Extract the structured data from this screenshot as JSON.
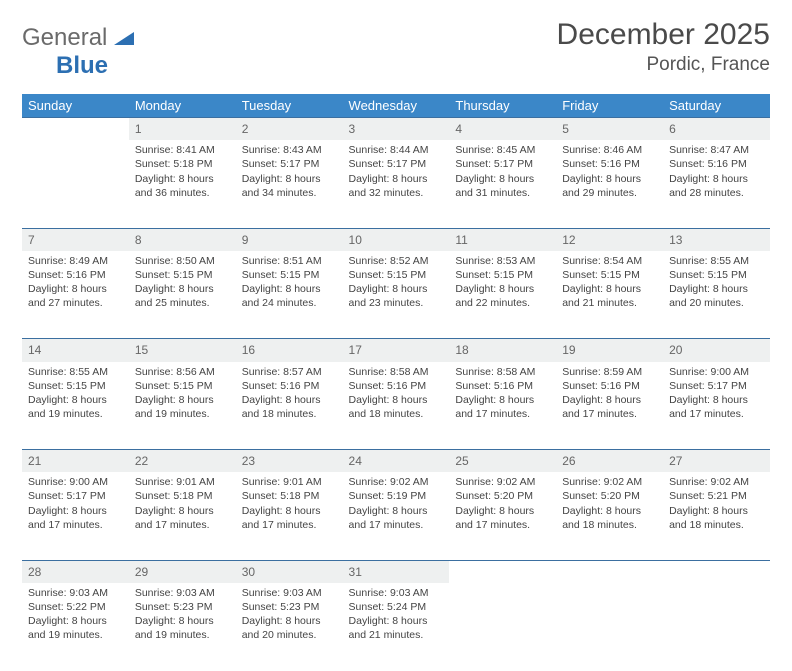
{
  "logo": {
    "word1": "General",
    "word2": "Blue"
  },
  "title": "December 2025",
  "location": "Pordic, France",
  "colors": {
    "header_bar": "#3b87c8",
    "daynum_bg": "#eef0f0",
    "row_border": "#3b6fa0",
    "logo_gray": "#6a6a6a",
    "logo_blue": "#2c6fb2",
    "title_color": "#4a4a4a",
    "body_text": "#444444"
  },
  "weekdays": [
    "Sunday",
    "Monday",
    "Tuesday",
    "Wednesday",
    "Thursday",
    "Friday",
    "Saturday"
  ],
  "layout": {
    "columns": 7,
    "weeks": 5,
    "first_weekday_index": 1,
    "days_in_month": 31
  },
  "days": {
    "1": {
      "sunrise": "8:41 AM",
      "sunset": "5:18 PM",
      "daylight": "8 hours and 36 minutes."
    },
    "2": {
      "sunrise": "8:43 AM",
      "sunset": "5:17 PM",
      "daylight": "8 hours and 34 minutes."
    },
    "3": {
      "sunrise": "8:44 AM",
      "sunset": "5:17 PM",
      "daylight": "8 hours and 32 minutes."
    },
    "4": {
      "sunrise": "8:45 AM",
      "sunset": "5:17 PM",
      "daylight": "8 hours and 31 minutes."
    },
    "5": {
      "sunrise": "8:46 AM",
      "sunset": "5:16 PM",
      "daylight": "8 hours and 29 minutes."
    },
    "6": {
      "sunrise": "8:47 AM",
      "sunset": "5:16 PM",
      "daylight": "8 hours and 28 minutes."
    },
    "7": {
      "sunrise": "8:49 AM",
      "sunset": "5:16 PM",
      "daylight": "8 hours and 27 minutes."
    },
    "8": {
      "sunrise": "8:50 AM",
      "sunset": "5:15 PM",
      "daylight": "8 hours and 25 minutes."
    },
    "9": {
      "sunrise": "8:51 AM",
      "sunset": "5:15 PM",
      "daylight": "8 hours and 24 minutes."
    },
    "10": {
      "sunrise": "8:52 AM",
      "sunset": "5:15 PM",
      "daylight": "8 hours and 23 minutes."
    },
    "11": {
      "sunrise": "8:53 AM",
      "sunset": "5:15 PM",
      "daylight": "8 hours and 22 minutes."
    },
    "12": {
      "sunrise": "8:54 AM",
      "sunset": "5:15 PM",
      "daylight": "8 hours and 21 minutes."
    },
    "13": {
      "sunrise": "8:55 AM",
      "sunset": "5:15 PM",
      "daylight": "8 hours and 20 minutes."
    },
    "14": {
      "sunrise": "8:55 AM",
      "sunset": "5:15 PM",
      "daylight": "8 hours and 19 minutes."
    },
    "15": {
      "sunrise": "8:56 AM",
      "sunset": "5:15 PM",
      "daylight": "8 hours and 19 minutes."
    },
    "16": {
      "sunrise": "8:57 AM",
      "sunset": "5:16 PM",
      "daylight": "8 hours and 18 minutes."
    },
    "17": {
      "sunrise": "8:58 AM",
      "sunset": "5:16 PM",
      "daylight": "8 hours and 18 minutes."
    },
    "18": {
      "sunrise": "8:58 AM",
      "sunset": "5:16 PM",
      "daylight": "8 hours and 17 minutes."
    },
    "19": {
      "sunrise": "8:59 AM",
      "sunset": "5:16 PM",
      "daylight": "8 hours and 17 minutes."
    },
    "20": {
      "sunrise": "9:00 AM",
      "sunset": "5:17 PM",
      "daylight": "8 hours and 17 minutes."
    },
    "21": {
      "sunrise": "9:00 AM",
      "sunset": "5:17 PM",
      "daylight": "8 hours and 17 minutes."
    },
    "22": {
      "sunrise": "9:01 AM",
      "sunset": "5:18 PM",
      "daylight": "8 hours and 17 minutes."
    },
    "23": {
      "sunrise": "9:01 AM",
      "sunset": "5:18 PM",
      "daylight": "8 hours and 17 minutes."
    },
    "24": {
      "sunrise": "9:02 AM",
      "sunset": "5:19 PM",
      "daylight": "8 hours and 17 minutes."
    },
    "25": {
      "sunrise": "9:02 AM",
      "sunset": "5:20 PM",
      "daylight": "8 hours and 17 minutes."
    },
    "26": {
      "sunrise": "9:02 AM",
      "sunset": "5:20 PM",
      "daylight": "8 hours and 18 minutes."
    },
    "27": {
      "sunrise": "9:02 AM",
      "sunset": "5:21 PM",
      "daylight": "8 hours and 18 minutes."
    },
    "28": {
      "sunrise": "9:03 AM",
      "sunset": "5:22 PM",
      "daylight": "8 hours and 19 minutes."
    },
    "29": {
      "sunrise": "9:03 AM",
      "sunset": "5:23 PM",
      "daylight": "8 hours and 19 minutes."
    },
    "30": {
      "sunrise": "9:03 AM",
      "sunset": "5:23 PM",
      "daylight": "8 hours and 20 minutes."
    },
    "31": {
      "sunrise": "9:03 AM",
      "sunset": "5:24 PM",
      "daylight": "8 hours and 21 minutes."
    }
  },
  "labels": {
    "sunrise": "Sunrise: ",
    "sunset": "Sunset: ",
    "daylight": "Daylight: "
  }
}
